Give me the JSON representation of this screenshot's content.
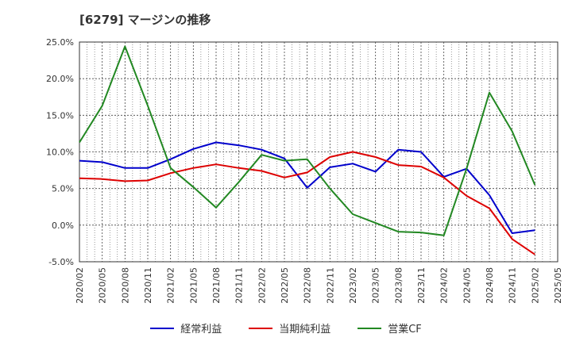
{
  "chart_data": {
    "type": "line",
    "title": "[6279]  マージンの推移",
    "x": [
      "2020/02",
      "2020/05",
      "2020/08",
      "2020/11",
      "2021/02",
      "2021/05",
      "2021/08",
      "2021/11",
      "2022/02",
      "2022/05",
      "2022/08",
      "2022/11",
      "2023/02",
      "2023/05",
      "2023/08",
      "2023/11",
      "2024/02",
      "2024/05",
      "2024/08",
      "2024/11",
      "2025/02"
    ],
    "x_ticks": [
      "2020/02",
      "2020/05",
      "2020/08",
      "2020/11",
      "2021/02",
      "2021/05",
      "2021/08",
      "2021/11",
      "2022/02",
      "2022/05",
      "2022/08",
      "2022/11",
      "2023/02",
      "2023/05",
      "2023/08",
      "2023/11",
      "2024/02",
      "2024/05",
      "2024/08",
      "2024/11",
      "2025/02",
      "2025/05"
    ],
    "y_ticks": [
      "25.0%",
      "20.0%",
      "15.0%",
      "10.0%",
      "5.0%",
      "0.0%",
      "-5.0%"
    ],
    "y_tick_values": [
      25,
      20,
      15,
      10,
      5,
      0,
      -5
    ],
    "ylim": [
      -5,
      25
    ],
    "grid": true,
    "legend_position": "bottom",
    "series": [
      {
        "name": "経常利益",
        "color": "#0000cc",
        "values": [
          8.8,
          8.6,
          7.8,
          7.8,
          9.0,
          10.4,
          11.3,
          10.9,
          10.3,
          9.1,
          5.1,
          7.9,
          8.4,
          7.3,
          10.3,
          10.0,
          6.6,
          7.7,
          4.1,
          -1.1,
          -0.7
        ]
      },
      {
        "name": "当期純利益",
        "color": "#dd0000",
        "values": [
          6.4,
          6.3,
          6.0,
          6.1,
          7.1,
          7.8,
          8.3,
          7.8,
          7.4,
          6.5,
          7.2,
          9.3,
          10.0,
          9.3,
          8.2,
          8.0,
          6.5,
          4.0,
          2.3,
          -1.9,
          -4.0
        ]
      },
      {
        "name": "営業CF",
        "color": "#228822",
        "values": [
          11.3,
          16.3,
          24.4,
          16.3,
          7.8,
          5.2,
          2.4,
          5.9,
          9.6,
          8.8,
          9.0,
          5.0,
          1.5,
          0.3,
          -0.9,
          -1.0,
          -1.4,
          7.7,
          18.1,
          12.8,
          5.5
        ]
      }
    ]
  }
}
